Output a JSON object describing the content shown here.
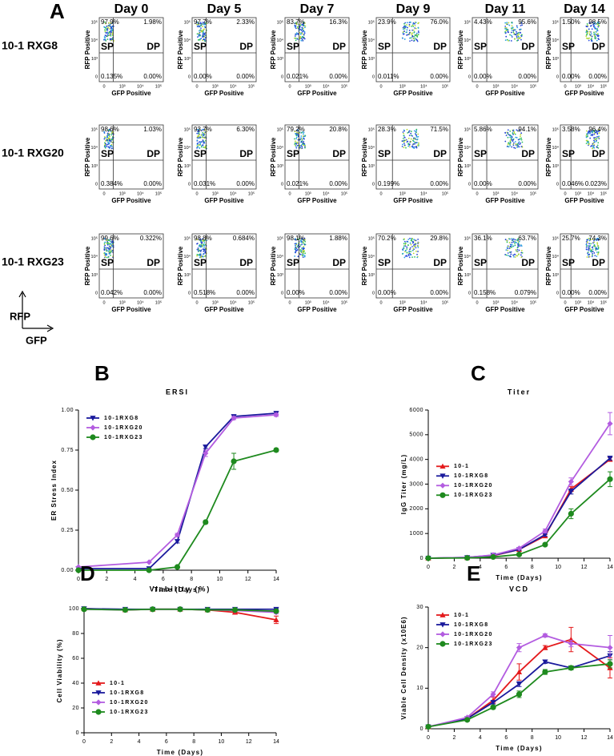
{
  "flow_panel": {
    "panel_label": "A",
    "days": [
      "Day 0",
      "Day 5",
      "Day 7",
      "Day 9",
      "Day 11",
      "Day 14"
    ],
    "quadrant_labels": [
      "SP",
      "DP"
    ],
    "y_axis_label": "RFP Positive",
    "x_axis_label": "GFP Positive",
    "x_tick_labels": [
      "0",
      "10³",
      "10⁴",
      "10⁵"
    ],
    "y_tick_labels": [
      "10⁵",
      "10⁴",
      "10³",
      "0"
    ],
    "axes_key": {
      "y": "RFP",
      "x": "GFP"
    },
    "rows": [
      {
        "label": "10-1 RXG8",
        "plots": [
          {
            "upper_left": "97.9%",
            "upper_right": "1.98%",
            "lower_left": "0.135%",
            "lower_right": "0.00%"
          },
          {
            "upper_left": "97.7%",
            "upper_right": "2.33%",
            "lower_left": "0.00%",
            "lower_right": "0.00%"
          },
          {
            "upper_left": "83.7%",
            "upper_right": "16.3%",
            "lower_left": "0.021%",
            "lower_right": "0.00%"
          },
          {
            "upper_left": "23.9%",
            "upper_right": "76.0%",
            "lower_left": "0.011%",
            "lower_right": "0.00%"
          },
          {
            "upper_left": "4.43%",
            "upper_right": "95.6%",
            "lower_left": "0.00%",
            "lower_right": "0.00%"
          },
          {
            "upper_left": "1.50%",
            "upper_right": "98.5%",
            "lower_left": "0.00%",
            "lower_right": "0.00%"
          }
        ]
      },
      {
        "label": "10-1 RXG20",
        "plots": [
          {
            "upper_left": "98.6%",
            "upper_right": "1.03%",
            "lower_left": "0.384%",
            "lower_right": "0.00%"
          },
          {
            "upper_left": "93.7%",
            "upper_right": "6.30%",
            "lower_left": "0.031%",
            "lower_right": "0.00%"
          },
          {
            "upper_left": "79.2%",
            "upper_right": "20.8%",
            "lower_left": "0.021%",
            "lower_right": "0.00%"
          },
          {
            "upper_left": "28.3%",
            "upper_right": "71.5%",
            "lower_left": "0.199%",
            "lower_right": "0.00%"
          },
          {
            "upper_left": "5.86%",
            "upper_right": "94.1%",
            "lower_left": "0.00%",
            "lower_right": "0.00%"
          },
          {
            "upper_left": "3.58%",
            "upper_right": "96.4%",
            "lower_left": "0.046%",
            "lower_right": "0.023%"
          }
        ]
      },
      {
        "label": "10-1 RXG23",
        "plots": [
          {
            "upper_left": "99.6%",
            "upper_right": "0.322%",
            "lower_left": "0.042%",
            "lower_right": "0.00%"
          },
          {
            "upper_left": "98.8%",
            "upper_right": "0.684%",
            "lower_left": "0.518%",
            "lower_right": "0.00%"
          },
          {
            "upper_left": "98.1%",
            "upper_right": "1.88%",
            "lower_left": "0.00%",
            "lower_right": "0.00%"
          },
          {
            "upper_left": "70.2%",
            "upper_right": "29.8%",
            "lower_left": "0.00%",
            "lower_right": "0.00%"
          },
          {
            "upper_left": "36.1%",
            "upper_right": "63.7%",
            "lower_left": "0.158%",
            "lower_right": "0.079%"
          },
          {
            "upper_left": "25.7%",
            "upper_right": "74.3%",
            "lower_left": "0.00%",
            "lower_right": "0.00%"
          }
        ]
      }
    ]
  },
  "chart_data": [
    {
      "type": "line",
      "panel_label": "B",
      "title": "ERSI",
      "x_label": "Time (Days)",
      "y_label": "ER Stress Index",
      "xlim": [
        0,
        14
      ],
      "xticks": [
        0,
        2,
        4,
        6,
        8,
        10,
        12,
        14
      ],
      "ylim": [
        0,
        1
      ],
      "yticks": [
        {
          "value": 0,
          "label": "0.00"
        },
        {
          "value": 0.25,
          "label": "0.25"
        },
        {
          "value": 0.5,
          "label": "0.50"
        },
        {
          "value": 0.75,
          "label": "0.75"
        },
        {
          "value": 1,
          "label": "1.00"
        }
      ],
      "legend": "upper left",
      "series": [
        {
          "name": "10-1RXG8",
          "color": "#1a1a9c",
          "marker": "triangle-down",
          "x": [
            0,
            5,
            7,
            9,
            11,
            14
          ],
          "values": [
            0.01,
            0.01,
            0.18,
            0.77,
            0.96,
            0.98
          ],
          "errors": [
            0,
            0,
            0.01,
            0.01,
            0.01,
            0.01
          ]
        },
        {
          "name": "10-1RXG20",
          "color": "#b35ce0",
          "marker": "diamond",
          "x": [
            0,
            5,
            7,
            9,
            11,
            14
          ],
          "values": [
            0.02,
            0.05,
            0.22,
            0.73,
            0.95,
            0.97
          ],
          "errors": [
            0,
            0,
            0.01,
            0.02,
            0.01,
            0.01
          ]
        },
        {
          "name": "10-1RXG23",
          "color": "#1e8a1e",
          "marker": "circle",
          "x": [
            0,
            5,
            7,
            9,
            11,
            14
          ],
          "values": [
            0,
            0,
            0.02,
            0.3,
            0.68,
            0.75
          ],
          "errors": [
            0,
            0,
            0,
            0.01,
            0.05,
            0.01
          ]
        }
      ]
    },
    {
      "type": "line",
      "panel_label": "C",
      "title": "Titer",
      "x_label": "Time (Days)",
      "y_label": "IgG Titer (mg/L)",
      "xlim": [
        0,
        14
      ],
      "xticks": [
        0,
        2,
        4,
        6,
        8,
        10,
        12,
        14
      ],
      "ylim": [
        0,
        6000
      ],
      "yticks": [
        0,
        1000,
        2000,
        3000,
        4000,
        5000,
        6000
      ],
      "legend": "center left",
      "series": [
        {
          "name": "10-1",
          "color": "#e41a1c",
          "marker": "triangle-up",
          "x": [
            0,
            3,
            5,
            7,
            9,
            11,
            14
          ],
          "values": [
            0,
            20,
            100,
            350,
            900,
            2800,
            4000
          ],
          "errors": [
            0,
            0,
            10,
            30,
            60,
            100,
            80
          ]
        },
        {
          "name": "10-1RXG8",
          "color": "#1a1a9c",
          "marker": "triangle-down",
          "x": [
            0,
            3,
            5,
            7,
            9,
            11,
            14
          ],
          "values": [
            0,
            30,
            120,
            350,
            950,
            2700,
            4050
          ],
          "errors": [
            0,
            0,
            10,
            30,
            60,
            100,
            80
          ]
        },
        {
          "name": "10-1RXG20",
          "color": "#b35ce0",
          "marker": "diamond",
          "x": [
            0,
            3,
            5,
            7,
            9,
            11,
            14
          ],
          "values": [
            0,
            30,
            130,
            400,
            1100,
            3100,
            5450
          ],
          "errors": [
            0,
            0,
            10,
            30,
            80,
            150,
            450
          ]
        },
        {
          "name": "10-1RXG23",
          "color": "#1e8a1e",
          "marker": "circle",
          "x": [
            0,
            3,
            5,
            7,
            9,
            11,
            14
          ],
          "values": [
            0,
            10,
            50,
            150,
            550,
            1800,
            3200
          ],
          "errors": [
            0,
            0,
            10,
            20,
            40,
            200,
            300
          ]
        }
      ]
    },
    {
      "type": "line",
      "panel_label": "D",
      "title": "Viability (%)",
      "x_label": "Time (Days)",
      "y_label": "Cell Viability (%)",
      "xlim": [
        0,
        14
      ],
      "xticks": [
        0,
        2,
        4,
        6,
        8,
        10,
        12,
        14
      ],
      "ylim": [
        0,
        100
      ],
      "yticks": [
        0,
        20,
        40,
        60,
        80,
        100
      ],
      "legend": "lower left",
      "series": [
        {
          "name": "10-1",
          "color": "#e41a1c",
          "marker": "triangle-up",
          "x": [
            0,
            3,
            5,
            7,
            9,
            11,
            14
          ],
          "values": [
            100,
            99,
            99.5,
            99.5,
            99,
            97,
            91
          ],
          "errors": [
            0,
            0.5,
            0.3,
            0.3,
            0.5,
            1,
            3
          ]
        },
        {
          "name": "10-1RXG8",
          "color": "#1a1a9c",
          "marker": "triangle-down",
          "x": [
            0,
            3,
            5,
            7,
            9,
            11,
            14
          ],
          "values": [
            100,
            99.5,
            99.5,
            99.5,
            99.5,
            99.5,
            99.5
          ],
          "errors": [
            0,
            0.3,
            0.3,
            0.3,
            0.3,
            0.3,
            0.5
          ]
        },
        {
          "name": "10-1RXG20",
          "color": "#b35ce0",
          "marker": "diamond",
          "x": [
            0,
            3,
            5,
            7,
            9,
            11,
            14
          ],
          "values": [
            99.5,
            99,
            99.5,
            99.5,
            99,
            98.5,
            97
          ],
          "errors": [
            0,
            0.3,
            0.3,
            0.3,
            0.3,
            0.5,
            1
          ]
        },
        {
          "name": "10-1RXG23",
          "color": "#1e8a1e",
          "marker": "circle",
          "x": [
            0,
            3,
            5,
            7,
            9,
            11,
            14
          ],
          "values": [
            99.5,
            99,
            99.5,
            99.5,
            99,
            99,
            98
          ],
          "errors": [
            0,
            0.3,
            0.3,
            0.3,
            0.3,
            0.5,
            1
          ]
        }
      ]
    },
    {
      "type": "line",
      "panel_label": "E",
      "title": "VCD",
      "x_label": "Time (Days)",
      "y_label": "Viable Cell Density (x10E6)",
      "xlim": [
        0,
        14
      ],
      "xticks": [
        0,
        2,
        4,
        6,
        8,
        10,
        12,
        14
      ],
      "ylim": [
        0,
        30
      ],
      "yticks": [
        0,
        10,
        20,
        30
      ],
      "legend": "upper left",
      "series": [
        {
          "name": "10-1",
          "color": "#e41a1c",
          "marker": "triangle-up",
          "x": [
            0,
            3,
            5,
            7,
            9,
            11,
            14
          ],
          "values": [
            0.5,
            2.5,
            7,
            14,
            20,
            22,
            15
          ],
          "errors": [
            0,
            0.3,
            0.8,
            2,
            0.5,
            3,
            2.5
          ]
        },
        {
          "name": "10-1RXG8",
          "color": "#1a1a9c",
          "marker": "triangle-down",
          "x": [
            0,
            3,
            5,
            7,
            9,
            11,
            14
          ],
          "values": [
            0.5,
            2.5,
            6.5,
            11,
            16.5,
            15,
            18
          ],
          "errors": [
            0,
            0.2,
            0.4,
            0.6,
            0.4,
            0.5,
            1
          ]
        },
        {
          "name": "10-1RXG20",
          "color": "#b35ce0",
          "marker": "diamond",
          "x": [
            0,
            3,
            5,
            7,
            9,
            11,
            14
          ],
          "values": [
            0.5,
            2.8,
            8.5,
            20,
            23,
            21,
            20
          ],
          "errors": [
            0,
            0.2,
            0.6,
            1,
            0.4,
            0.8,
            3
          ]
        },
        {
          "name": "10-1RXG23",
          "color": "#1e8a1e",
          "marker": "circle",
          "x": [
            0,
            3,
            5,
            7,
            9,
            11,
            14
          ],
          "values": [
            0.5,
            2.2,
            5.3,
            8.5,
            14,
            15,
            16
          ],
          "errors": [
            0,
            0.2,
            0.4,
            0.8,
            0.6,
            0.5,
            1
          ]
        }
      ]
    }
  ]
}
